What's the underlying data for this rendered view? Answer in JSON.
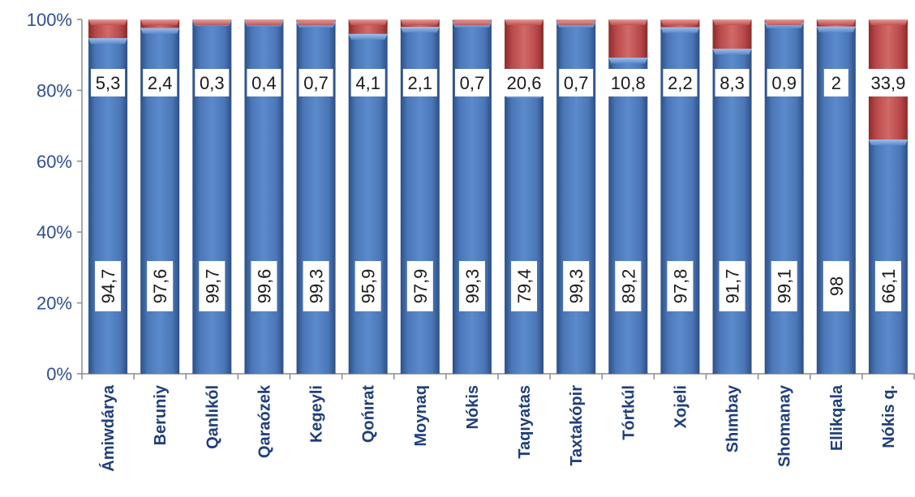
{
  "chart_data": {
    "type": "bar",
    "stacked": true,
    "normalized": true,
    "categories": [
      "Ámiwdárya",
      "Beruniy",
      "Qanlıkól",
      "Qaraózek",
      "Kegeyli",
      "Qońırat",
      "Moynaq",
      "Nókis",
      "Taqıyatas",
      "Taxtakópir",
      "Tórtkúl",
      "Xojeli",
      "Shımbay",
      "Shomanay",
      "Ellikqala",
      "Nókis q."
    ],
    "series": [
      {
        "values": [
          94.7,
          97.6,
          99.7,
          99.6,
          99.3,
          95.9,
          97.9,
          99.3,
          79.4,
          99.3,
          89.2,
          97.8,
          91.7,
          99.1,
          98,
          66.1
        ],
        "labels": [
          "94,7",
          "97,6",
          "99,7",
          "99,6",
          "99,3",
          "95,9",
          "97,9",
          "99,3",
          "79,4",
          "99,3",
          "89,2",
          "97,8",
          "91,7",
          "99,1",
          "98",
          "66,1"
        ]
      },
      {
        "values": [
          5.3,
          2.4,
          0.3,
          0.4,
          0.7,
          4.1,
          2.1,
          0.7,
          20.6,
          0.7,
          10.8,
          2.2,
          8.3,
          0.9,
          2,
          33.9
        ],
        "labels": [
          "5,3",
          "2,4",
          "0,3",
          "0,4",
          "0,7",
          "4,1",
          "2,1",
          "0,7",
          "20,6",
          "0,7",
          "10,8",
          "2,2",
          "8,3",
          "0,9",
          "2",
          "33,9"
        ]
      }
    ],
    "colors": [
      "#4f81bd",
      "#c0504d"
    ],
    "ylim": [
      0,
      100
    ],
    "yticks": [
      "0%",
      "20%",
      "40%",
      "60%",
      "80%",
      "100%"
    ],
    "grid": false,
    "legend": "none"
  }
}
